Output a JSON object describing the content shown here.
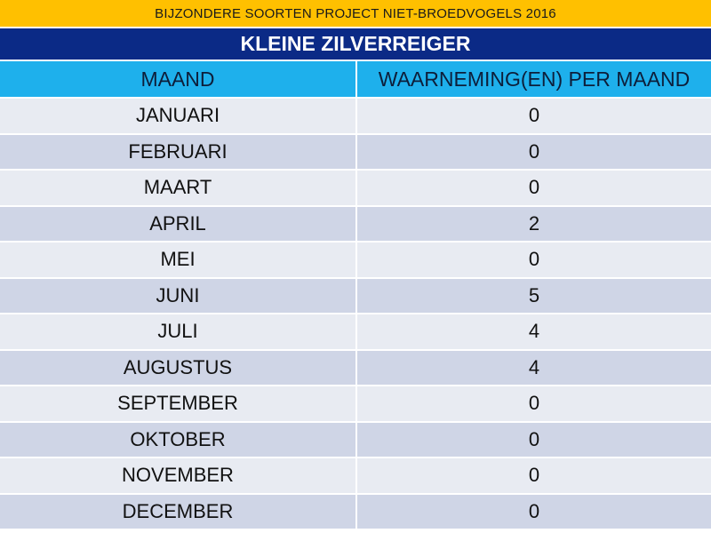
{
  "banner": {
    "text": "BIJZONDERE SOORTEN PROJECT  NIET-BROEDVOGELS  2016"
  },
  "species": {
    "title": "KLEINE ZILVERREIGER"
  },
  "colors": {
    "banner": "#ffc000",
    "title_bar": "#0b2a86",
    "header_row": "#1eb0ec",
    "row_light": "#e8ebf2",
    "row_dark": "#cfd5e6"
  },
  "chart_data": {
    "type": "table",
    "title": "KLEINE ZILVERREIGER",
    "columns": [
      "MAAND",
      "WAARNEMING(EN) PER MAAND"
    ],
    "rows": [
      [
        "JANUARI",
        "0"
      ],
      [
        "FEBRUARI",
        "0"
      ],
      [
        "MAART",
        "0"
      ],
      [
        "APRIL",
        "2"
      ],
      [
        "MEI",
        "0"
      ],
      [
        "JUNI",
        "5"
      ],
      [
        "JULI",
        "4"
      ],
      [
        "AUGUSTUS",
        "4"
      ],
      [
        "SEPTEMBER",
        "0"
      ],
      [
        "OKTOBER",
        "0"
      ],
      [
        "NOVEMBER",
        "0"
      ],
      [
        "DECEMBER",
        "0"
      ]
    ]
  }
}
